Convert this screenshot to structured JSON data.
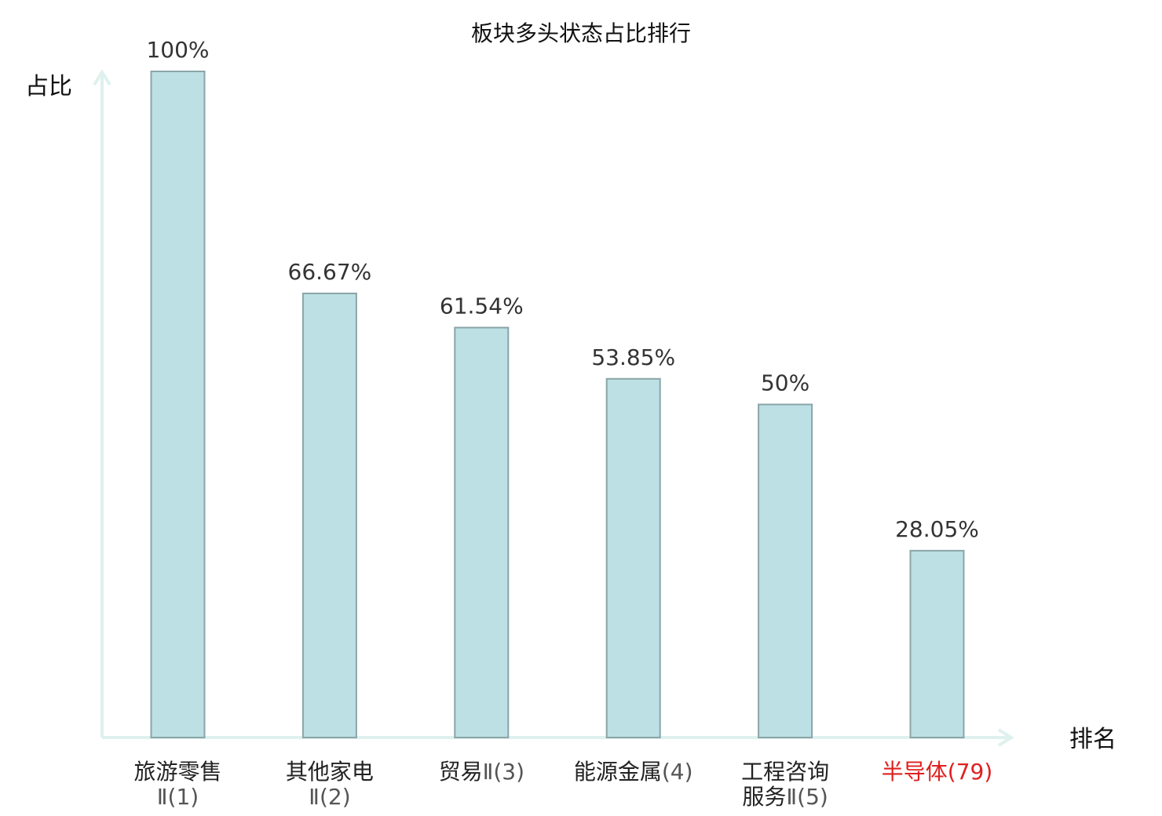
{
  "chart_data": {
    "type": "bar",
    "title": "板块多头状态占比排行",
    "ylabel": "占比",
    "xlabel": "排名",
    "ylim": [
      0,
      100
    ],
    "grid": false,
    "legend": "none",
    "categories": [
      {
        "name": "旅游零售",
        "rank": "Ⅱ(1)",
        "highlight": false
      },
      {
        "name": "其他家电",
        "rank": "Ⅱ(2)",
        "highlight": false
      },
      {
        "name": "贸易",
        "rank": "Ⅱ(3)",
        "highlight": false
      },
      {
        "name": "能源金属",
        "rank": "(4)",
        "highlight": false
      },
      {
        "name": "工程咨询",
        "name2": "服务",
        "rank": "Ⅱ(5)",
        "highlight": false
      },
      {
        "name": "半导体",
        "rank": "(79)",
        "highlight": true
      }
    ],
    "values": [
      100,
      66.67,
      61.54,
      53.85,
      50,
      28.05
    ],
    "value_labels": [
      "100%",
      "66.67%",
      "61.54%",
      "53.85%",
      "50%",
      "28.05%"
    ]
  },
  "colors": {
    "bar_fill": "#bce0e3",
    "bar_stroke": "#8aa5a8",
    "axis": "#dff1ee",
    "highlight_text": "#e02020"
  }
}
